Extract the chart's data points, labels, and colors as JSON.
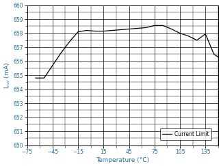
{
  "title": "",
  "xlabel": "Temperature (°C)",
  "ylabel": "I$_{cur}$ (mA)",
  "xlim": [
    -75,
    150
  ],
  "ylim": [
    650,
    660
  ],
  "xticks": [
    -75,
    -45,
    -15,
    15,
    45,
    75,
    105,
    135
  ],
  "yticks": [
    650,
    651,
    652,
    653,
    654,
    655,
    656,
    657,
    658,
    659,
    660
  ],
  "line_color": "#000000",
  "label_color": "#1F6FBF",
  "legend_label": "Current Limit",
  "x_data": [
    -65,
    -55,
    -45,
    -35,
    -25,
    -15,
    -5,
    5,
    15,
    25,
    35,
    45,
    55,
    65,
    75,
    85,
    95,
    105,
    115,
    125,
    135,
    145,
    150
  ],
  "y_data": [
    654.8,
    654.8,
    655.7,
    656.6,
    657.4,
    658.1,
    658.2,
    658.15,
    658.15,
    658.2,
    658.25,
    658.3,
    658.35,
    658.4,
    658.55,
    658.55,
    658.3,
    658.0,
    657.8,
    657.5,
    657.95,
    656.5,
    656.3
  ]
}
